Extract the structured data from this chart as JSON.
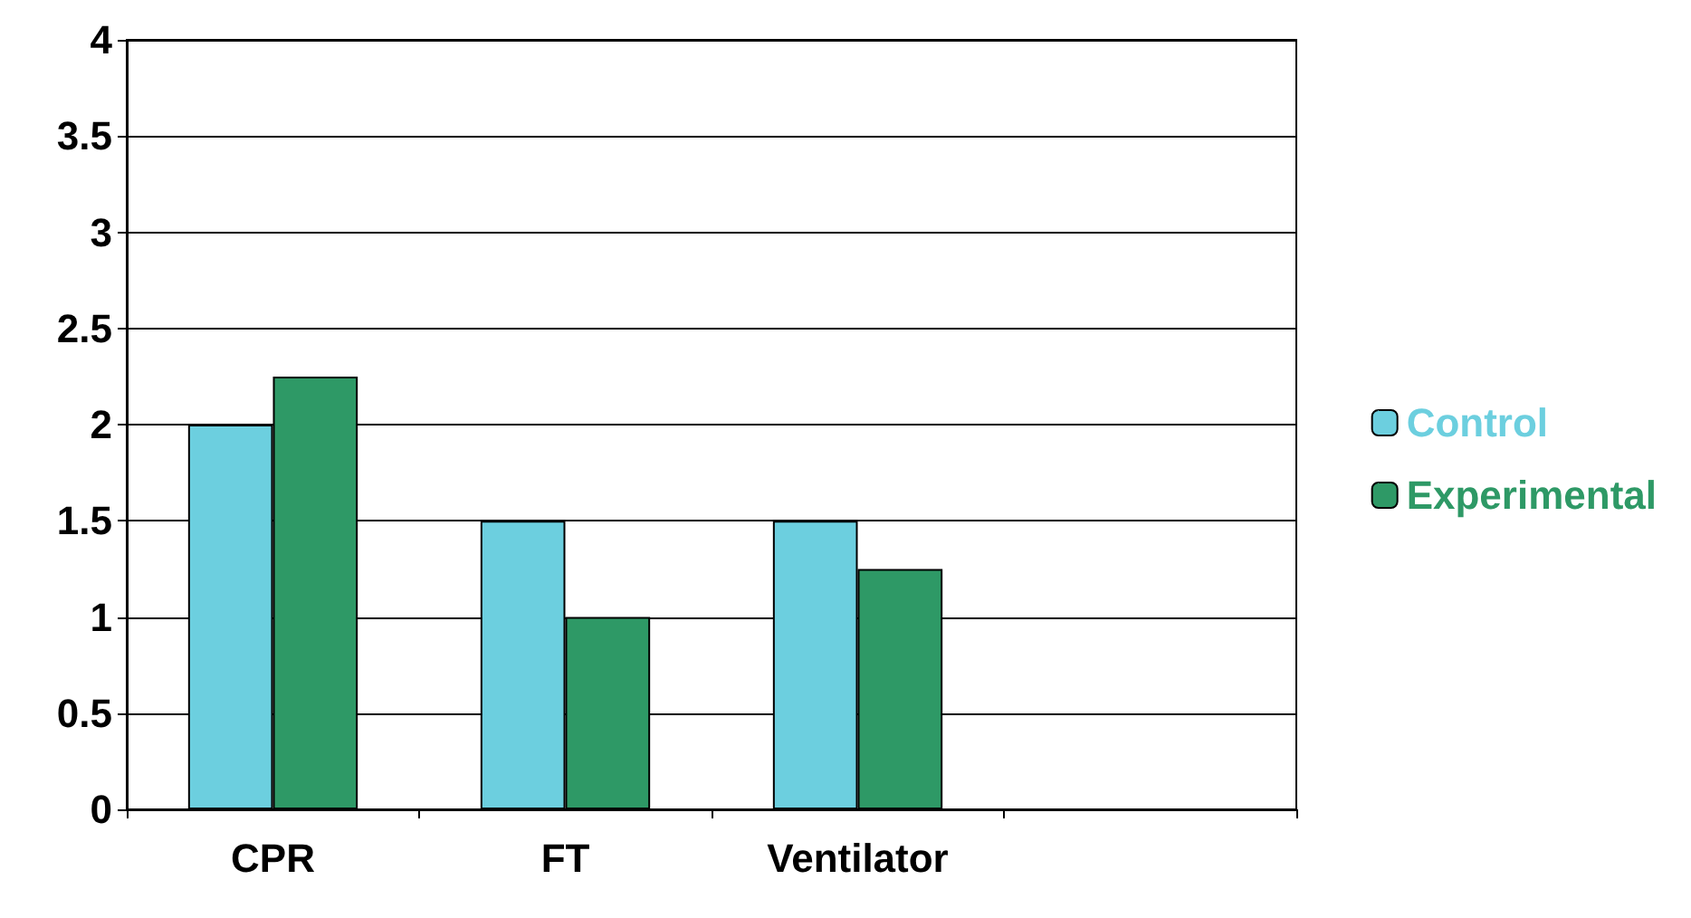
{
  "chart_data": {
    "type": "bar",
    "categories": [
      "CPR",
      "FT",
      "Ventilator",
      null
    ],
    "series": [
      {
        "name": "Control",
        "color": "#6ccfdf",
        "values": [
          2,
          1.5,
          1.5,
          null
        ]
      },
      {
        "name": "Experimental",
        "color": "#2e9966",
        "values": [
          2.25,
          1,
          1.25,
          null
        ]
      }
    ],
    "ylim": [
      0,
      4
    ],
    "yticks": [
      0,
      0.5,
      1,
      1.5,
      2,
      2.5,
      3,
      3.5,
      4
    ],
    "grid": "y",
    "legend": "right"
  }
}
